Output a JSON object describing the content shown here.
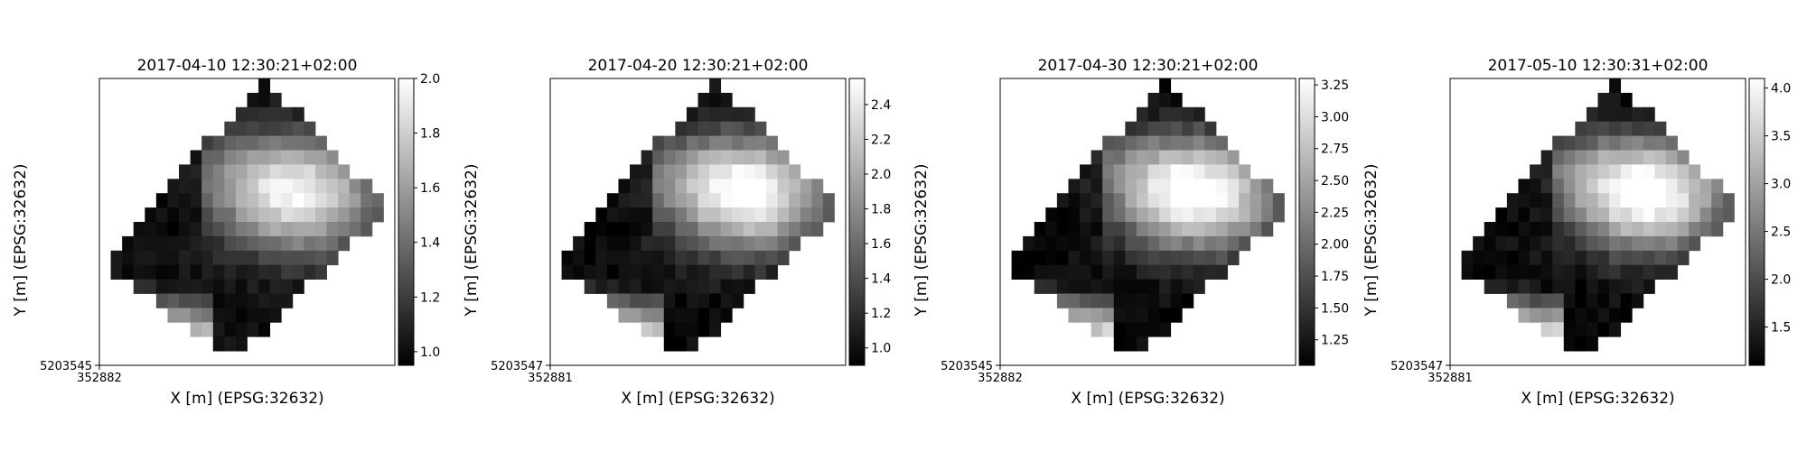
{
  "chart_data": [
    {
      "type": "heatmap",
      "title": "2017-04-10 12:30:21+02:00",
      "xlabel": "X [m] (EPSG:32632)",
      "ylabel": "Y [m] (EPSG:32632)",
      "x_tick_labels": [
        "352882"
      ],
      "y_tick_labels": [
        "5203545"
      ],
      "colormap": "gray",
      "colorbar_range": [
        0.95,
        2.0
      ],
      "colorbar_ticks": [
        "1.0",
        "1.2",
        "1.4",
        "1.6",
        "1.8",
        "2.0"
      ],
      "high_value": 1.8,
      "mid_value": 1.55,
      "corner_value": 1.7
    },
    {
      "type": "heatmap",
      "title": "2017-04-20 12:30:21+02:00",
      "xlabel": "X [m] (EPSG:32632)",
      "ylabel": "Y [m] (EPSG:32632)",
      "x_tick_labels": [
        "352881"
      ],
      "y_tick_labels": [
        "5203547"
      ],
      "colormap": "gray",
      "colorbar_range": [
        0.9,
        2.55
      ],
      "colorbar_ticks": [
        "1.0",
        "1.2",
        "1.4",
        "1.6",
        "1.8",
        "2.0",
        "2.2",
        "2.4"
      ],
      "high_value": 2.35,
      "mid_value": 2.0,
      "corner_value": 2.2
    },
    {
      "type": "heatmap",
      "title": "2017-04-30 12:30:21+02:00",
      "xlabel": "X [m] (EPSG:32632)",
      "ylabel": "Y [m] (EPSG:32632)",
      "x_tick_labels": [
        "352882"
      ],
      "y_tick_labels": [
        "5203545"
      ],
      "colormap": "gray",
      "colorbar_range": [
        1.05,
        3.3
      ],
      "colorbar_ticks": [
        "1.25",
        "1.50",
        "1.75",
        "2.00",
        "2.25",
        "2.50",
        "2.75",
        "3.00",
        "3.25"
      ],
      "high_value": 3.1,
      "mid_value": 2.6,
      "corner_value": 2.9
    },
    {
      "type": "heatmap",
      "title": "2017-05-10 12:30:31+02:00",
      "xlabel": "X [m] (EPSG:32632)",
      "ylabel": "Y [m] (EPSG:32632)",
      "x_tick_labels": [
        "352881"
      ],
      "y_tick_labels": [
        "5203547"
      ],
      "colormap": "gray",
      "colorbar_range": [
        1.1,
        4.1
      ],
      "colorbar_ticks": [
        "1.5",
        "2.0",
        "2.5",
        "3.0",
        "3.5",
        "4.0"
      ],
      "high_value": 3.9,
      "mid_value": 3.1,
      "corner_value": 3.5
    }
  ]
}
